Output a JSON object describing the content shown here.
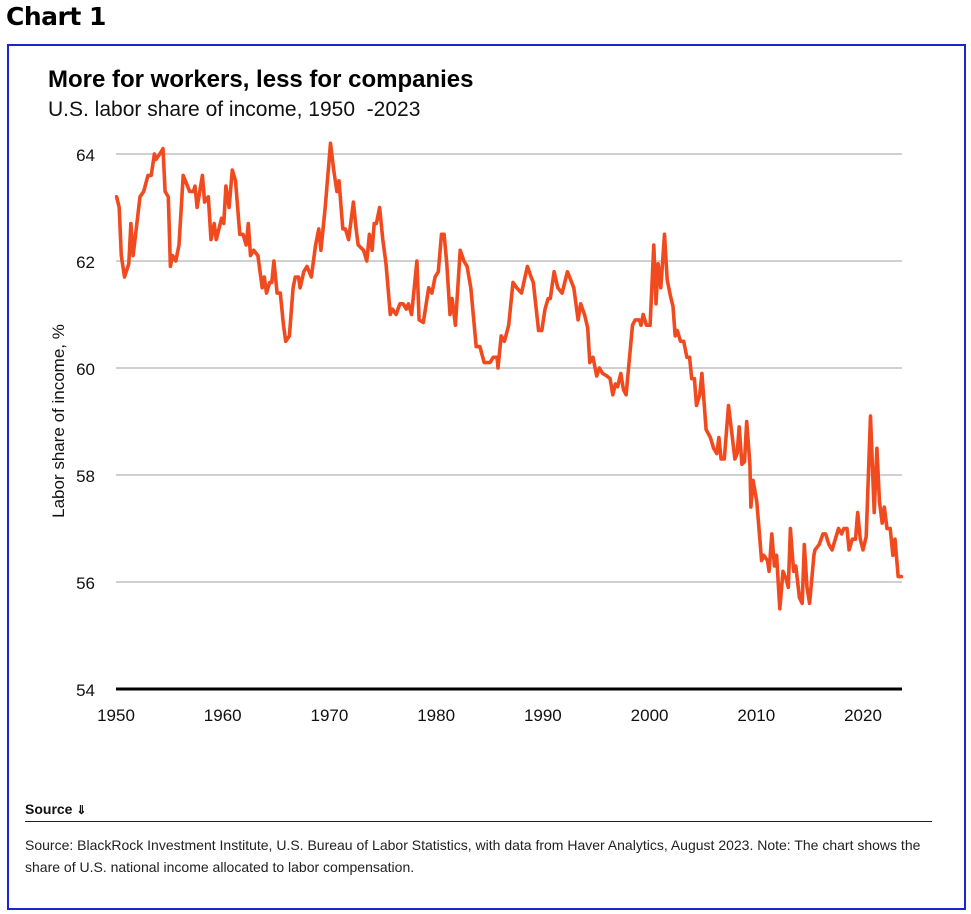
{
  "figure_label": "Chart 1",
  "source_toggle": "Source ⌄",
  "source_toggle_label": "Source",
  "source_toggle_icon": "double-chevron-down-icon",
  "source_text": "Source: BlackRock Investment Institute, U.S. Bureau of Labor Statistics, with data from Haver Analytics, August 2023. Note: The chart shows the share of U.S. national income allocated to labor compensation.",
  "colors": {
    "line": "#f24a1f",
    "frame": "#1c22d6",
    "grid": "#b3b3b3",
    "axis": "#000000"
  },
  "chart_data": {
    "type": "line",
    "title": "More for workers, less for companies",
    "subtitle": "U.S. labor share of income, 1950  -2023",
    "xlabel": "",
    "ylabel": "Labor share of income, %",
    "xlim": [
      1950,
      2023.6
    ],
    "ylim": [
      54,
      64
    ],
    "xticks": [
      1950,
      1960,
      1970,
      1980,
      1990,
      2000,
      2010,
      2020
    ],
    "yticks": [
      54,
      56,
      58,
      60,
      62,
      64
    ],
    "grid": true,
    "legend": "none",
    "series": [
      {
        "name": "U.S. labor share of income",
        "x": [
          1950.06,
          1950.3,
          1950.5,
          1950.8,
          1951.2,
          1951.4,
          1951.6,
          1952.25,
          1952.6,
          1953.0,
          1953.3,
          1953.6,
          1953.75,
          1954.1,
          1954.4,
          1954.6,
          1954.9,
          1955.1,
          1955.3,
          1955.6,
          1955.9,
          1956.3,
          1956.7,
          1956.9,
          1957.25,
          1957.4,
          1957.6,
          1958.1,
          1958.3,
          1958.65,
          1958.9,
          1959.2,
          1959.4,
          1959.9,
          1960.1,
          1960.3,
          1960.6,
          1960.9,
          1961.2,
          1961.6,
          1961.9,
          1962.2,
          1962.4,
          1962.6,
          1962.9,
          1963.3,
          1963.7,
          1963.9,
          1964.1,
          1964.4,
          1964.6,
          1964.8,
          1965.1,
          1965.4,
          1965.7,
          1965.9,
          1966.25,
          1966.6,
          1966.8,
          1967.1,
          1967.25,
          1967.6,
          1967.9,
          1968.3,
          1968.7,
          1969.0,
          1969.2,
          1969.6,
          1970.1,
          1970.4,
          1970.7,
          1970.9,
          1971.25,
          1971.5,
          1971.8,
          1972.25,
          1972.5,
          1972.7,
          1973.2,
          1973.5,
          1973.75,
          1974.0,
          1974.2,
          1974.4,
          1974.7,
          1975.0,
          1975.3,
          1975.7,
          1975.9,
          1976.25,
          1976.6,
          1976.9,
          1977.2,
          1977.4,
          1977.7,
          1978.2,
          1978.4,
          1978.8,
          1979.3,
          1979.6,
          1979.9,
          1980.2,
          1980.5,
          1980.75,
          1981.0,
          1981.3,
          1981.5,
          1981.8,
          1982.25,
          1982.6,
          1982.9,
          1983.25,
          1983.75,
          1984.1,
          1984.5,
          1985.05,
          1985.35,
          1985.7,
          1985.8,
          1986.1,
          1986.4,
          1986.8,
          1987.2,
          1987.55,
          1988.0,
          1988.55,
          1988.9,
          1989.1,
          1989.6,
          1989.9,
          1990.2,
          1990.5,
          1990.7,
          1991.05,
          1991.4,
          1991.8,
          1992.3,
          1992.6,
          1992.9,
          1993.3,
          1993.55,
          1993.9,
          1994.2,
          1994.4,
          1994.7,
          1995.05,
          1995.3,
          1995.6,
          1996.0,
          1996.3,
          1996.55,
          1996.8,
          1997.0,
          1997.3,
          1997.55,
          1997.8,
          1998.1,
          1998.4,
          1998.65,
          1999.05,
          1999.2,
          1999.4,
          1999.7,
          2000.05,
          2000.4,
          2000.6,
          2000.8,
          2001.05,
          2001.4,
          2001.65,
          2001.95,
          2002.2,
          2002.4,
          2002.6,
          2002.9,
          2003.2,
          2003.5,
          2003.75,
          2003.95,
          2004.2,
          2004.4,
          2004.7,
          2004.9,
          2005.3,
          2005.7,
          2006.0,
          2006.3,
          2006.5,
          2006.7,
          2007.0,
          2007.4,
          2007.7,
          2008.0,
          2008.2,
          2008.4,
          2008.65,
          2008.9,
          2009.1,
          2009.4,
          2009.5,
          2009.7,
          2010.05,
          2010.5,
          2010.7,
          2011.05,
          2011.2,
          2011.45,
          2011.7,
          2011.9,
          2012.2,
          2012.5,
          2012.8,
          2013.0,
          2013.2,
          2013.5,
          2013.7,
          2014.05,
          2014.3,
          2014.5,
          2014.75,
          2015.0,
          2015.4,
          2015.5,
          2015.9,
          2016.25,
          2016.5,
          2016.8,
          2017.1,
          2017.4,
          2017.7,
          2018.0,
          2018.2,
          2018.5,
          2018.7,
          2019.0,
          2019.3,
          2019.5,
          2019.75,
          2020.0,
          2020.3,
          2020.7,
          2021.05,
          2021.3,
          2021.55,
          2021.8,
          2022.0,
          2022.25,
          2022.55,
          2022.8,
          2023.0,
          2023.3,
          2023.6
        ],
        "y": [
          63.2,
          63.0,
          62.1,
          61.7,
          61.95,
          62.7,
          62.1,
          63.2,
          63.3,
          63.6,
          63.6,
          64.0,
          63.9,
          64.0,
          64.1,
          63.3,
          63.2,
          61.9,
          62.1,
          62.0,
          62.3,
          63.6,
          63.4,
          63.3,
          63.3,
          63.4,
          63.0,
          63.6,
          63.1,
          63.2,
          62.4,
          62.7,
          62.4,
          62.8,
          62.7,
          63.4,
          63.0,
          63.7,
          63.5,
          62.5,
          62.5,
          62.3,
          62.7,
          62.1,
          62.2,
          62.1,
          61.5,
          61.7,
          61.4,
          61.6,
          61.6,
          62.0,
          61.4,
          61.4,
          60.8,
          60.5,
          60.6,
          61.5,
          61.7,
          61.7,
          61.5,
          61.8,
          61.9,
          61.7,
          62.3,
          62.6,
          62.2,
          63.0,
          64.2,
          63.7,
          63.3,
          63.5,
          62.6,
          62.6,
          62.4,
          63.1,
          62.6,
          62.3,
          62.2,
          62.0,
          62.5,
          62.2,
          62.7,
          62.7,
          63.0,
          62.4,
          61.95,
          61.0,
          61.1,
          61.0,
          61.2,
          61.2,
          61.1,
          61.2,
          61.0,
          62.0,
          60.9,
          60.85,
          61.5,
          61.4,
          61.7,
          61.8,
          62.5,
          62.5,
          61.95,
          61.0,
          61.3,
          60.8,
          62.2,
          62.0,
          61.9,
          61.5,
          60.4,
          60.4,
          60.1,
          60.1,
          60.2,
          60.2,
          60.0,
          60.6,
          60.5,
          60.8,
          61.6,
          61.5,
          61.4,
          61.9,
          61.7,
          61.6,
          60.7,
          60.7,
          61.1,
          61.3,
          61.3,
          61.8,
          61.5,
          61.4,
          61.8,
          61.65,
          61.5,
          60.9,
          61.2,
          61.0,
          60.75,
          60.1,
          60.2,
          59.85,
          60.0,
          59.9,
          59.85,
          59.8,
          59.5,
          59.7,
          59.65,
          59.9,
          59.6,
          59.5,
          60.15,
          60.8,
          60.9,
          60.9,
          60.8,
          61.0,
          60.8,
          60.8,
          62.3,
          61.2,
          61.95,
          61.5,
          62.5,
          61.65,
          61.35,
          61.15,
          60.6,
          60.7,
          60.5,
          60.5,
          60.2,
          60.2,
          59.8,
          59.8,
          59.3,
          59.5,
          59.9,
          58.85,
          58.7,
          58.5,
          58.4,
          58.7,
          58.3,
          58.3,
          59.3,
          58.8,
          58.3,
          58.4,
          58.9,
          58.2,
          58.25,
          59.0,
          58.2,
          57.4,
          57.9,
          57.5,
          56.4,
          56.5,
          56.4,
          56.2,
          56.9,
          56.3,
          56.5,
          55.5,
          56.2,
          56.05,
          55.9,
          57.0,
          56.2,
          56.3,
          55.7,
          55.6,
          56.7,
          55.9,
          55.6,
          56.5,
          56.6,
          56.7,
          56.9,
          56.9,
          56.7,
          56.6,
          56.8,
          57.0,
          56.9,
          57.0,
          57.0,
          56.6,
          56.8,
          56.8,
          57.3,
          56.8,
          56.6,
          56.85,
          59.1,
          57.3,
          58.5,
          57.5,
          57.1,
          57.4,
          57.0,
          57.0,
          56.5,
          56.8,
          56.1,
          56.1
        ]
      }
    ]
  }
}
